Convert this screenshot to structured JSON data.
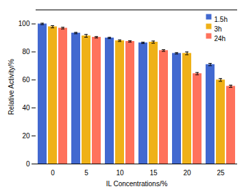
{
  "chart_data": {
    "type": "bar",
    "xlabel": "IL Concentrations/%",
    "ylabel": "Relative Activity/%",
    "categories": [
      0,
      5,
      10,
      15,
      20,
      25
    ],
    "series": [
      {
        "name": "1.5h",
        "values": [
          100.0,
          93.5,
          90.0,
          86.5,
          79.0,
          71.0
        ],
        "errors": [
          0.5,
          0.5,
          0.5,
          0.5,
          0.5,
          0.8
        ]
      },
      {
        "name": "3h",
        "values": [
          98.0,
          91.5,
          88.0,
          87.0,
          79.0,
          60.0
        ],
        "errors": [
          0.8,
          1.0,
          0.6,
          0.8,
          1.0,
          1.0
        ]
      },
      {
        "name": "24h",
        "values": [
          97.0,
          90.5,
          87.5,
          81.0,
          64.5,
          55.5
        ],
        "errors": [
          0.6,
          0.5,
          0.5,
          0.6,
          0.8,
          0.8
        ]
      }
    ],
    "ylim": [
      0,
      110
    ],
    "yticks": [
      0,
      20,
      40,
      60,
      80,
      100
    ],
    "grid": false,
    "legend": "upper right"
  }
}
